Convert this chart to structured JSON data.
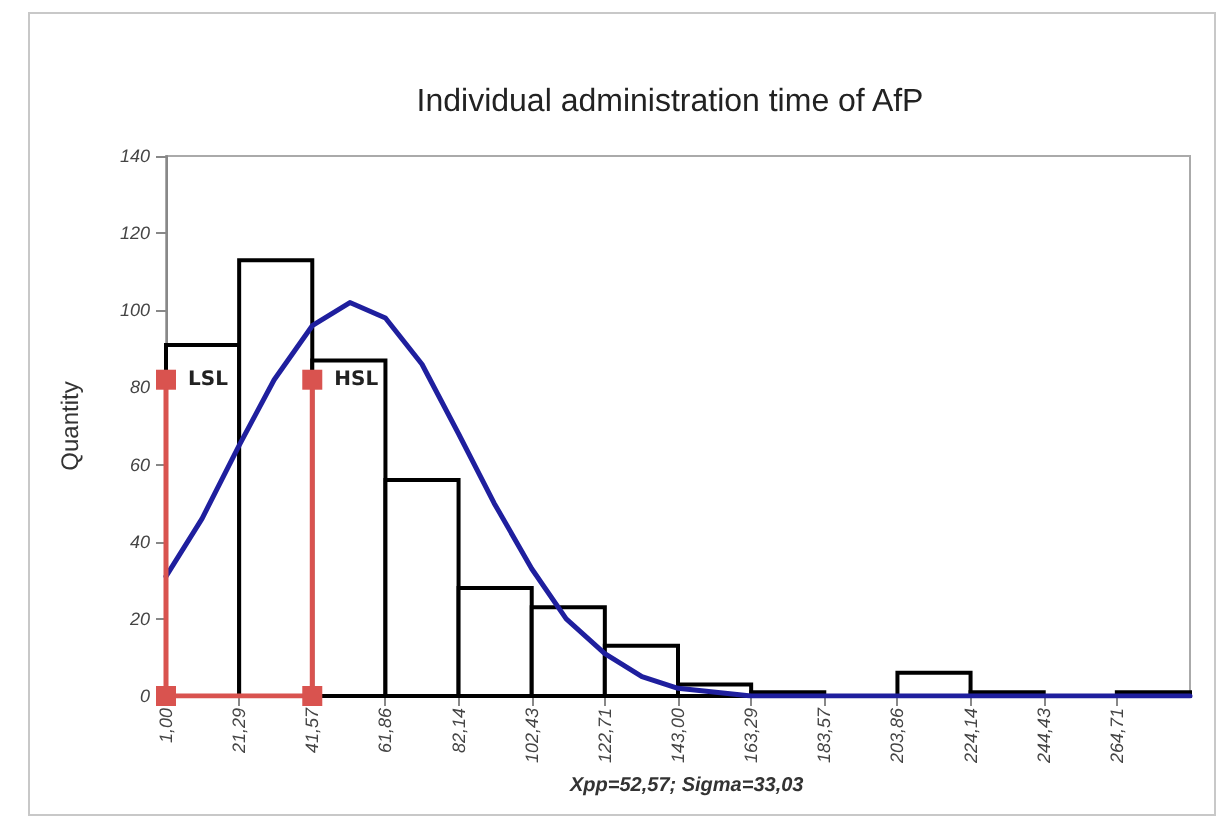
{
  "chart_data": {
    "type": "histogram",
    "title": "Individual administration time of AfP",
    "ylabel": "Quantity",
    "bins": [
      1.0,
      21.29,
      41.57,
      61.86,
      82.14,
      102.43,
      122.71,
      143.0,
      163.29,
      183.57,
      203.86,
      224.14,
      244.43,
      264.71,
      285.0
    ],
    "values": [
      91,
      113,
      87,
      56,
      28,
      23,
      13,
      3,
      1,
      0,
      6,
      1,
      0,
      1
    ],
    "color": "#000000",
    "series": [
      {
        "type": "line",
        "color": "#1f1f9e",
        "marker": "none",
        "x": [
          1,
          11,
          21.29,
          31,
          41.57,
          52,
          61.86,
          72,
          82.14,
          92,
          102.43,
          112,
          122.71,
          133,
          143,
          163.29,
          285
        ],
        "values": [
          31,
          46,
          65,
          82,
          96,
          102,
          98,
          86,
          68,
          50,
          33,
          20,
          11,
          5,
          2,
          0,
          0
        ]
      },
      {
        "type": "line",
        "name": "LSL",
        "color": "#d9534f",
        "marker": "square",
        "x": [
          1,
          1
        ],
        "values": [
          0,
          82
        ]
      },
      {
        "type": "line",
        "name": "HSL",
        "color": "#d9534f",
        "marker": "square",
        "x": [
          1,
          41.57,
          41.57
        ],
        "values": [
          0,
          0,
          82
        ]
      }
    ],
    "xlim": [
      1,
      285
    ],
    "xticks": [
      {
        "value": 1.0,
        "label": "1,00"
      },
      {
        "value": 21.29,
        "label": "21,29"
      },
      {
        "value": 41.57,
        "label": "41,57"
      },
      {
        "value": 61.86,
        "label": "61,86"
      },
      {
        "value": 82.14,
        "label": "82,14"
      },
      {
        "value": 102.43,
        "label": "102,43"
      },
      {
        "value": 122.71,
        "label": "122,71"
      },
      {
        "value": 143.0,
        "label": "143,00"
      },
      {
        "value": 163.29,
        "label": "163,29"
      },
      {
        "value": 183.57,
        "label": "183,57"
      },
      {
        "value": 203.86,
        "label": "203,86"
      },
      {
        "value": 224.14,
        "label": "224,14"
      },
      {
        "value": 244.43,
        "label": "244,43"
      },
      {
        "value": 264.71,
        "label": "264,71"
      }
    ],
    "ylim": [
      0,
      140
    ],
    "yticks": [
      0,
      20,
      40,
      60,
      80,
      100,
      120,
      140
    ],
    "grid": false,
    "legend": false,
    "annotations": [
      "Xpp=52,57; Sigma=33,03"
    ]
  }
}
